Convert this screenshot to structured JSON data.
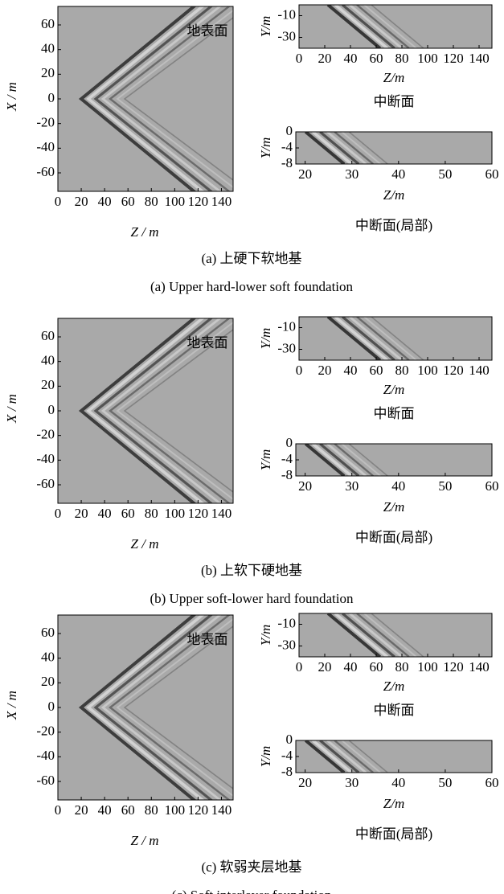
{
  "groups": [
    {
      "caption_cn": "(a) 上硬下软地基",
      "caption_en": "(a) Upper hard-lower soft foundation",
      "panels": [
        {
          "label": "地表面",
          "xlabel": "Z / m",
          "ylabel": "X / m",
          "xlim": [
            0,
            150
          ],
          "xticks": [
            0,
            20,
            40,
            60,
            80,
            100,
            120,
            140
          ],
          "ylim": [
            -75,
            75
          ],
          "yticks": [
            60,
            40,
            20,
            0,
            -20,
            -40,
            -60
          ]
        },
        {
          "xlabel": "Z/m",
          "ylabel": "Y/m",
          "caption": "中断面",
          "xlim": [
            0,
            150
          ],
          "xticks": [
            0,
            20,
            40,
            60,
            80,
            100,
            120,
            140
          ],
          "ylim": [
            -40,
            0
          ],
          "yticks": [
            -10,
            -30
          ]
        },
        {
          "xlabel": "Z/m",
          "ylabel": "Y/m",
          "caption": "中断面(局部)",
          "xlim": [
            18,
            60
          ],
          "xticks": [
            20,
            30,
            40,
            50,
            60
          ],
          "ylim": [
            -8,
            0
          ],
          "yticks": [
            0,
            -4,
            -8
          ]
        }
      ]
    },
    {
      "caption_cn": "(b) 上软下硬地基",
      "caption_en": "(b) Upper soft-lower hard foundation",
      "panels": [
        {
          "label": "地表面",
          "xlabel": "Z / m",
          "ylabel": "X / m",
          "xlim": [
            0,
            150
          ],
          "xticks": [
            0,
            20,
            40,
            60,
            80,
            100,
            120,
            140
          ],
          "ylim": [
            -75,
            75
          ],
          "yticks": [
            60,
            40,
            20,
            0,
            -20,
            -40,
            -60
          ]
        },
        {
          "xlabel": "Z/m",
          "ylabel": "Y/m",
          "caption": "中断面",
          "xlim": [
            0,
            150
          ],
          "xticks": [
            0,
            20,
            40,
            60,
            80,
            100,
            120,
            140
          ],
          "ylim": [
            -40,
            0
          ],
          "yticks": [
            -10,
            -30
          ]
        },
        {
          "xlabel": "Z/m",
          "ylabel": "Y/m",
          "caption": "中断面(局部)",
          "xlim": [
            18,
            60
          ],
          "xticks": [
            20,
            30,
            40,
            50,
            60
          ],
          "ylim": [
            -8,
            0
          ],
          "yticks": [
            0,
            -4,
            -8
          ]
        }
      ]
    },
    {
      "caption_cn": "(c)  软弱夹层地基",
      "caption_en": "(c) Soft interlayer foundation",
      "panels": [
        {
          "label": "地表面",
          "xlabel": "Z / m",
          "ylabel": "X / m",
          "xlim": [
            0,
            150
          ],
          "xticks": [
            0,
            20,
            40,
            60,
            80,
            100,
            120,
            140
          ],
          "ylim": [
            -75,
            75
          ],
          "yticks": [
            60,
            40,
            20,
            0,
            -20,
            -40,
            -60
          ]
        },
        {
          "xlabel": "Z/m",
          "ylabel": "Y/m",
          "caption": "中断面",
          "xlim": [
            0,
            150
          ],
          "xticks": [
            0,
            20,
            40,
            60,
            80,
            100,
            120,
            140
          ],
          "ylim": [
            -40,
            0
          ],
          "yticks": [
            -10,
            -30
          ]
        },
        {
          "xlabel": "Z/m",
          "ylabel": "Y/m",
          "caption": "中断面(局部)",
          "xlim": [
            18,
            60
          ],
          "xticks": [
            20,
            30,
            40,
            50,
            60
          ],
          "ylim": [
            -8,
            0
          ],
          "yticks": [
            0,
            -4,
            -8
          ]
        }
      ]
    }
  ]
}
